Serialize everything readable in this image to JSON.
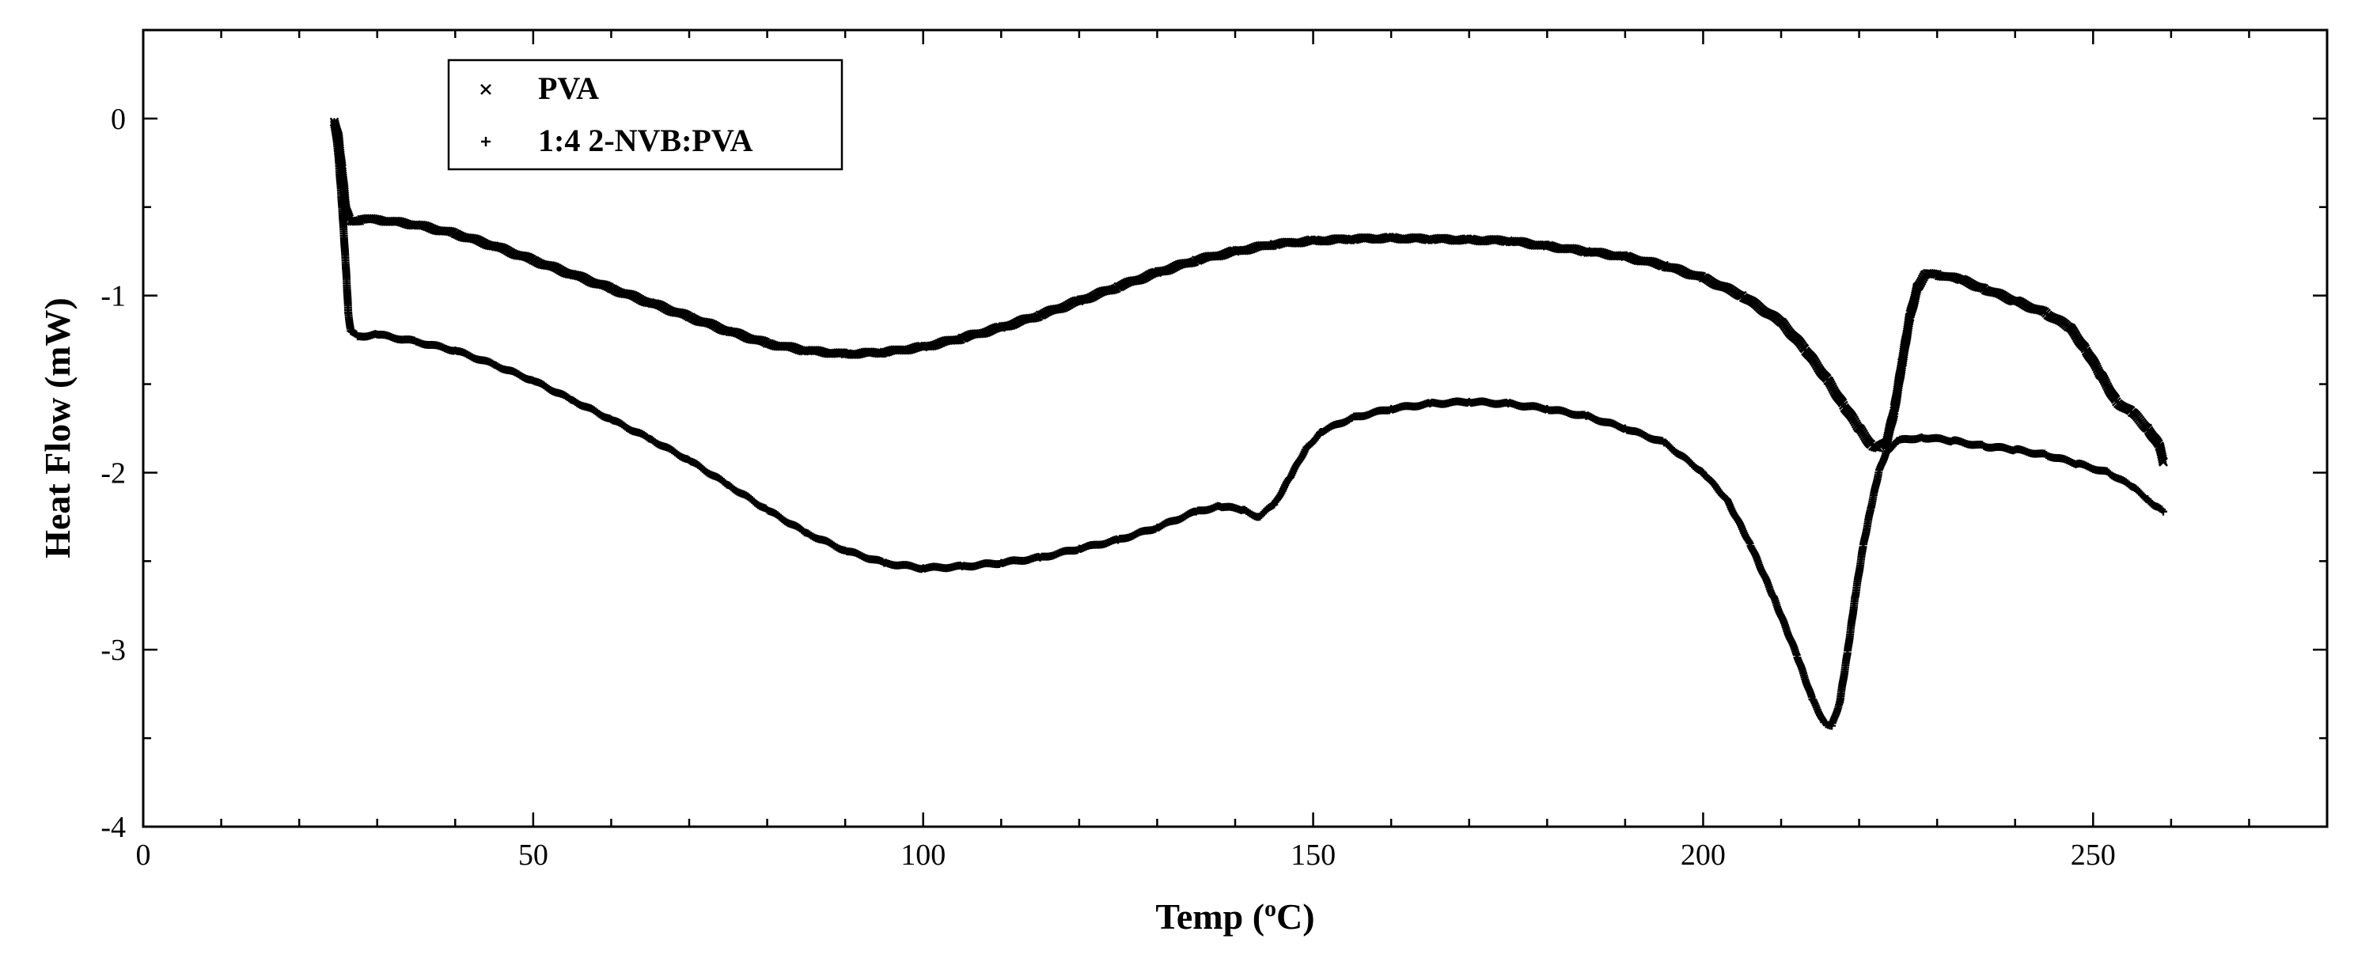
{
  "chart_data": {
    "type": "scatter",
    "title": "",
    "xlabel": "Temp (",
    "xlabel_sup": "o",
    "xlabel_suffix": "C)",
    "ylabel": "Heat Flow (mW)",
    "xlim": [
      0,
      280
    ],
    "ylim": [
      -4,
      0.5
    ],
    "x_ticks": [
      0,
      50,
      100,
      150,
      200,
      250
    ],
    "y_ticks": [
      0,
      -1,
      -2,
      -3,
      -4
    ],
    "x_tick_labels": [
      "0",
      "50",
      "100",
      "150",
      "200",
      "250"
    ],
    "y_tick_labels": [
      "0",
      "-1",
      "-2",
      "-3",
      "-4"
    ],
    "x_minor_step": 10,
    "y_minor_step": 0.5,
    "grid": false,
    "legend_position": "top-left",
    "series": [
      {
        "name": "PVA",
        "marker": "x",
        "color": "#000000",
        "points": [
          [
            24.5,
            -0.02
          ],
          [
            25.0,
            -0.1
          ],
          [
            25.5,
            -0.3
          ],
          [
            26.0,
            -0.52
          ],
          [
            26.5,
            -0.58
          ],
          [
            28,
            -0.57
          ],
          [
            30,
            -0.57
          ],
          [
            35,
            -0.6
          ],
          [
            40,
            -0.65
          ],
          [
            45,
            -0.72
          ],
          [
            50,
            -0.8
          ],
          [
            55,
            -0.88
          ],
          [
            60,
            -0.96
          ],
          [
            65,
            -1.04
          ],
          [
            70,
            -1.12
          ],
          [
            75,
            -1.2
          ],
          [
            80,
            -1.27
          ],
          [
            85,
            -1.31
          ],
          [
            90,
            -1.33
          ],
          [
            95,
            -1.32
          ],
          [
            100,
            -1.29
          ],
          [
            105,
            -1.24
          ],
          [
            110,
            -1.18
          ],
          [
            115,
            -1.11
          ],
          [
            120,
            -1.03
          ],
          [
            125,
            -0.95
          ],
          [
            130,
            -0.87
          ],
          [
            135,
            -0.8
          ],
          [
            140,
            -0.75
          ],
          [
            145,
            -0.71
          ],
          [
            150,
            -0.69
          ],
          [
            155,
            -0.68
          ],
          [
            160,
            -0.675
          ],
          [
            165,
            -0.68
          ],
          [
            170,
            -0.685
          ],
          [
            175,
            -0.69
          ],
          [
            180,
            -0.72
          ],
          [
            185,
            -0.75
          ],
          [
            190,
            -0.78
          ],
          [
            195,
            -0.83
          ],
          [
            200,
            -0.9
          ],
          [
            205,
            -1.0
          ],
          [
            210,
            -1.15
          ],
          [
            213,
            -1.3
          ],
          [
            216,
            -1.48
          ],
          [
            218,
            -1.62
          ],
          [
            220,
            -1.75
          ],
          [
            221.5,
            -1.84
          ],
          [
            222.5,
            -1.86
          ],
          [
            223.5,
            -1.83
          ],
          [
            224.5,
            -1.65
          ],
          [
            225.5,
            -1.38
          ],
          [
            226.5,
            -1.12
          ],
          [
            227.5,
            -0.95
          ],
          [
            228.5,
            -0.88
          ],
          [
            230,
            -0.88
          ],
          [
            233,
            -0.91
          ],
          [
            236,
            -0.96
          ],
          [
            240,
            -1.03
          ],
          [
            244,
            -1.1
          ],
          [
            247,
            -1.18
          ],
          [
            249,
            -1.3
          ],
          [
            251,
            -1.45
          ],
          [
            253,
            -1.6
          ],
          [
            255,
            -1.66
          ],
          [
            257,
            -1.75
          ],
          [
            258.5,
            -1.85
          ],
          [
            259,
            -1.94
          ]
        ]
      },
      {
        "name": "1:4 2-NVB:PVA",
        "marker": "+",
        "color": "#000000",
        "points": [
          [
            24.5,
            -0.02
          ],
          [
            25.0,
            -0.2
          ],
          [
            25.5,
            -0.5
          ],
          [
            26.0,
            -0.85
          ],
          [
            26.3,
            -1.1
          ],
          [
            26.6,
            -1.2
          ],
          [
            27.5,
            -1.23
          ],
          [
            30,
            -1.22
          ],
          [
            35,
            -1.26
          ],
          [
            40,
            -1.31
          ],
          [
            45,
            -1.39
          ],
          [
            50,
            -1.48
          ],
          [
            55,
            -1.59
          ],
          [
            60,
            -1.7
          ],
          [
            65,
            -1.81
          ],
          [
            70,
            -1.93
          ],
          [
            75,
            -2.07
          ],
          [
            80,
            -2.21
          ],
          [
            85,
            -2.34
          ],
          [
            90,
            -2.44
          ],
          [
            95,
            -2.51
          ],
          [
            100,
            -2.54
          ],
          [
            105,
            -2.53
          ],
          [
            110,
            -2.51
          ],
          [
            115,
            -2.48
          ],
          [
            120,
            -2.43
          ],
          [
            125,
            -2.38
          ],
          [
            130,
            -2.31
          ],
          [
            135,
            -2.22
          ],
          [
            138,
            -2.19
          ],
          [
            141,
            -2.21
          ],
          [
            143,
            -2.25
          ],
          [
            145,
            -2.18
          ],
          [
            147,
            -2.03
          ],
          [
            149,
            -1.87
          ],
          [
            151,
            -1.77
          ],
          [
            155,
            -1.69
          ],
          [
            160,
            -1.64
          ],
          [
            165,
            -1.61
          ],
          [
            170,
            -1.6
          ],
          [
            175,
            -1.61
          ],
          [
            180,
            -1.64
          ],
          [
            185,
            -1.68
          ],
          [
            190,
            -1.75
          ],
          [
            195,
            -1.83
          ],
          [
            200,
            -2.0
          ],
          [
            203,
            -2.15
          ],
          [
            206,
            -2.4
          ],
          [
            209,
            -2.7
          ],
          [
            212,
            -3.03
          ],
          [
            214,
            -3.28
          ],
          [
            215.5,
            -3.41
          ],
          [
            216.5,
            -3.43
          ],
          [
            217.5,
            -3.3
          ],
          [
            218.5,
            -3.02
          ],
          [
            219.5,
            -2.7
          ],
          [
            220.5,
            -2.42
          ],
          [
            221.5,
            -2.2
          ],
          [
            222.5,
            -2.0
          ],
          [
            223.5,
            -1.88
          ],
          [
            225,
            -1.82
          ],
          [
            228,
            -1.8
          ],
          [
            232,
            -1.82
          ],
          [
            236,
            -1.85
          ],
          [
            240,
            -1.87
          ],
          [
            244,
            -1.9
          ],
          [
            248,
            -1.95
          ],
          [
            252,
            -2.0
          ],
          [
            255,
            -2.08
          ],
          [
            257,
            -2.15
          ],
          [
            258,
            -2.19
          ],
          [
            259,
            -2.22
          ]
        ]
      }
    ]
  }
}
